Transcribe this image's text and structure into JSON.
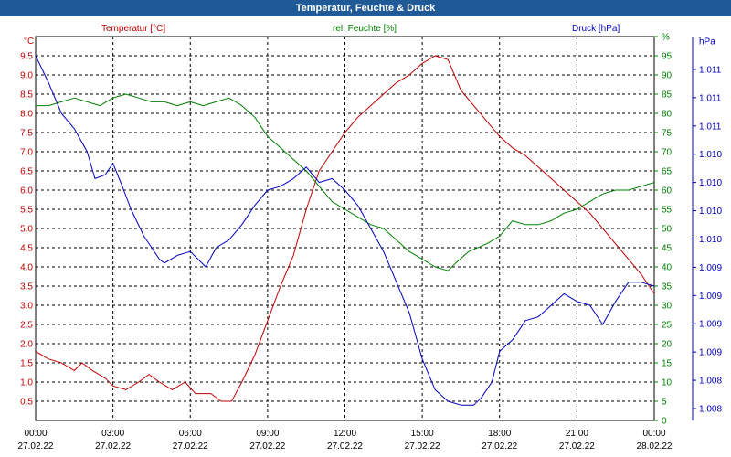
{
  "window": {
    "title": "Temperatur, Feuchte & Druck"
  },
  "colors": {
    "temperature": "#c00000",
    "humidity": "#008000",
    "pressure": "#0000c0",
    "grid": "#000000",
    "axis_text": "#000000"
  },
  "chart_data": {
    "type": "line",
    "title": "Temperatur, Feuchte & Druck",
    "grid": true,
    "x": {
      "range_hours": [
        0,
        24
      ],
      "tick_hours": [
        0,
        3,
        6,
        9,
        12,
        15,
        18,
        21,
        24
      ],
      "tick_labels": [
        [
          "00:00",
          "27.02.22"
        ],
        [
          "03:00",
          "27.02.22"
        ],
        [
          "06:00",
          "27.02.22"
        ],
        [
          "09:00",
          "27.02.22"
        ],
        [
          "12:00",
          "27.02.22"
        ],
        [
          "15:00",
          "27.02.22"
        ],
        [
          "18:00",
          "27.02.22"
        ],
        [
          "21:00",
          "27.02.22"
        ],
        [
          "00:00",
          "28.02.22"
        ]
      ]
    },
    "axes": {
      "temperature": {
        "unit": "°C",
        "range": [
          0,
          10
        ],
        "ticks": [
          0.5,
          1.0,
          1.5,
          2.0,
          2.5,
          3.0,
          3.5,
          4.0,
          4.5,
          5.0,
          5.5,
          6.0,
          6.5,
          7.0,
          7.5,
          8.0,
          8.5,
          9.0,
          9.5
        ],
        "tick_labels": [
          "0.5",
          "1.0",
          "1.5",
          "2.0",
          "2.5",
          "3.0",
          "3.5",
          "4.0",
          "4.5",
          "5.0",
          "5.5",
          "6.0",
          "6.5",
          "7.0",
          "7.5",
          "8.0",
          "8.5",
          "9.0",
          "9.5"
        ]
      },
      "humidity": {
        "unit": "%",
        "range": [
          0,
          100
        ],
        "ticks": [
          0,
          5,
          10,
          15,
          20,
          25,
          30,
          35,
          40,
          45,
          50,
          55,
          60,
          65,
          70,
          75,
          80,
          85,
          90,
          95,
          100
        ],
        "tick_labels": [
          "0",
          "5",
          "10",
          "15",
          "20",
          "25",
          "30",
          "35",
          "40",
          "45",
          "50",
          "55",
          "60",
          "65",
          "70",
          "75",
          "80",
          "85",
          "90",
          "95",
          "%"
        ]
      },
      "pressure": {
        "unit": "hPa",
        "tick_labels": [
          "1.008",
          "1.008",
          "1.009",
          "1.009",
          "1.009",
          "1.009",
          "1.010",
          "1.010",
          "1.010",
          "1.010",
          "1.011",
          "1.011",
          "1.011",
          "hPa"
        ]
      }
    },
    "series": [
      {
        "name": "Temperatur [°C]",
        "key": "temperature",
        "axis": "temperature",
        "points": [
          [
            0,
            1.8
          ],
          [
            0.5,
            1.6
          ],
          [
            1,
            1.5
          ],
          [
            1.5,
            1.3
          ],
          [
            1.8,
            1.5
          ],
          [
            2.2,
            1.3
          ],
          [
            2.7,
            1.1
          ],
          [
            3,
            0.9
          ],
          [
            3.5,
            0.8
          ],
          [
            4,
            1.0
          ],
          [
            4.4,
            1.2
          ],
          [
            4.8,
            1.0
          ],
          [
            5.3,
            0.8
          ],
          [
            5.8,
            1.0
          ],
          [
            6.2,
            0.7
          ],
          [
            6.8,
            0.7
          ],
          [
            7.2,
            0.5
          ],
          [
            7.6,
            0.5
          ],
          [
            8,
            1.0
          ],
          [
            8.5,
            1.7
          ],
          [
            9,
            2.6
          ],
          [
            9.5,
            3.5
          ],
          [
            10,
            4.3
          ],
          [
            10.5,
            5.5
          ],
          [
            11,
            6.5
          ],
          [
            11.5,
            7.0
          ],
          [
            12,
            7.5
          ],
          [
            12.5,
            7.9
          ],
          [
            13,
            8.2
          ],
          [
            13.5,
            8.5
          ],
          [
            14,
            8.8
          ],
          [
            14.5,
            9.0
          ],
          [
            15,
            9.3
          ],
          [
            15.5,
            9.5
          ],
          [
            16,
            9.4
          ],
          [
            16.5,
            8.6
          ],
          [
            17,
            8.2
          ],
          [
            17.5,
            7.8
          ],
          [
            18,
            7.4
          ],
          [
            18.5,
            7.1
          ],
          [
            19,
            6.9
          ],
          [
            19.5,
            6.6
          ],
          [
            20,
            6.3
          ],
          [
            20.5,
            6.0
          ],
          [
            21,
            5.7
          ],
          [
            21.5,
            5.4
          ],
          [
            22,
            5.0
          ],
          [
            22.5,
            4.6
          ],
          [
            23,
            4.2
          ],
          [
            23.5,
            3.8
          ],
          [
            24,
            3.3
          ]
        ]
      },
      {
        "name": "rel. Feuchte [%]",
        "key": "humidity",
        "axis": "humidity",
        "points": [
          [
            0,
            82
          ],
          [
            0.5,
            82
          ],
          [
            1,
            83
          ],
          [
            1.5,
            84
          ],
          [
            2,
            83
          ],
          [
            2.5,
            82
          ],
          [
            3,
            84
          ],
          [
            3.5,
            85
          ],
          [
            4,
            84
          ],
          [
            4.5,
            83
          ],
          [
            5,
            83
          ],
          [
            5.5,
            82
          ],
          [
            6,
            83
          ],
          [
            6.5,
            82
          ],
          [
            7,
            83
          ],
          [
            7.5,
            84
          ],
          [
            8,
            82
          ],
          [
            8.5,
            79
          ],
          [
            9,
            74
          ],
          [
            9.5,
            71
          ],
          [
            10,
            68
          ],
          [
            10.5,
            65
          ],
          [
            11,
            61
          ],
          [
            11.5,
            57
          ],
          [
            12,
            55
          ],
          [
            12.5,
            53
          ],
          [
            13,
            51
          ],
          [
            13.5,
            50
          ],
          [
            14,
            47
          ],
          [
            14.5,
            44
          ],
          [
            15,
            42
          ],
          [
            15.5,
            40
          ],
          [
            16,
            39
          ],
          [
            16.3,
            41
          ],
          [
            16.8,
            44
          ],
          [
            17.5,
            46
          ],
          [
            18,
            48
          ],
          [
            18.5,
            52
          ],
          [
            19,
            51
          ],
          [
            19.5,
            51
          ],
          [
            20,
            52
          ],
          [
            20.5,
            54
          ],
          [
            21,
            55
          ],
          [
            21.5,
            57
          ],
          [
            22,
            59
          ],
          [
            22.5,
            60
          ],
          [
            23,
            60
          ],
          [
            23.5,
            61
          ],
          [
            24,
            62
          ]
        ]
      },
      {
        "name": "Druck [hPa]",
        "key": "pressure",
        "axis": "pressure",
        "points": [
          [
            0,
            95
          ],
          [
            0.5,
            88
          ],
          [
            1,
            80
          ],
          [
            1.5,
            76
          ],
          [
            2,
            70
          ],
          [
            2.3,
            63
          ],
          [
            2.7,
            64
          ],
          [
            3,
            67
          ],
          [
            3.3,
            62
          ],
          [
            3.7,
            55
          ],
          [
            4.2,
            48
          ],
          [
            4.8,
            42
          ],
          [
            5,
            41
          ],
          [
            5.5,
            43
          ],
          [
            6,
            44
          ],
          [
            6.3,
            42
          ],
          [
            6.6,
            40
          ],
          [
            7,
            45
          ],
          [
            7.5,
            47
          ],
          [
            8,
            51
          ],
          [
            8.5,
            56
          ],
          [
            9,
            60
          ],
          [
            9.5,
            61
          ],
          [
            10,
            63
          ],
          [
            10.5,
            66
          ],
          [
            11,
            62
          ],
          [
            11.5,
            63
          ],
          [
            12,
            60
          ],
          [
            12.5,
            56
          ],
          [
            13,
            50
          ],
          [
            13.5,
            44
          ],
          [
            14,
            36
          ],
          [
            14.5,
            28
          ],
          [
            15,
            16
          ],
          [
            15.5,
            8
          ],
          [
            16,
            5
          ],
          [
            16.5,
            4
          ],
          [
            17,
            4
          ],
          [
            17.3,
            6
          ],
          [
            17.7,
            10
          ],
          [
            18,
            18
          ],
          [
            18.5,
            21
          ],
          [
            19,
            26
          ],
          [
            19.5,
            27
          ],
          [
            20,
            30
          ],
          [
            20.5,
            33
          ],
          [
            21,
            31
          ],
          [
            21.5,
            30
          ],
          [
            22,
            25
          ],
          [
            22.5,
            31
          ],
          [
            23,
            36
          ],
          [
            23.5,
            36
          ],
          [
            24,
            35
          ]
        ]
      }
    ]
  },
  "labels": {
    "temp_unit": "°C",
    "temp_series": "Temperatur [°C]",
    "hum_series": "rel. Feuchte [%]",
    "press_series": "Druck [hPa]"
  }
}
